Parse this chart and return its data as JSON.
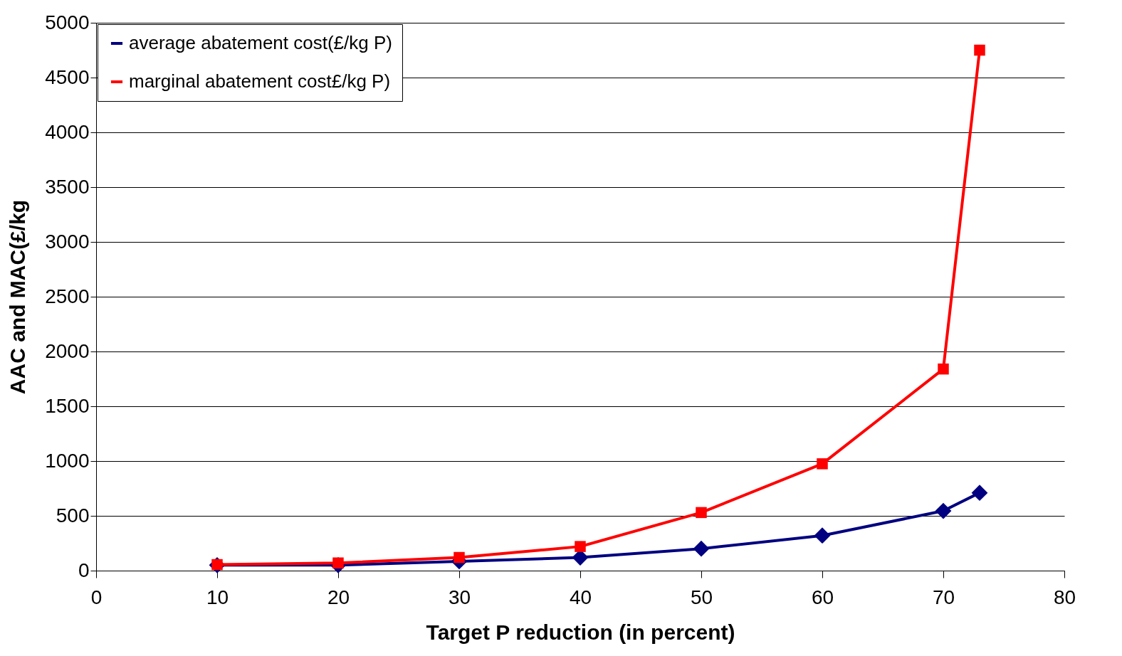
{
  "chart_data": {
    "type": "line",
    "xlabel": "Target P reduction (in percent)",
    "ylabel": "AAC and MAC(£/kg",
    "x": [
      10,
      20,
      30,
      40,
      50,
      60,
      70,
      73
    ],
    "series": [
      {
        "name": "average abatement cost(£/kg P)",
        "color": "#000080",
        "marker": "diamond",
        "values": [
          50,
          50,
          85,
          120,
          200,
          320,
          545,
          710
        ]
      },
      {
        "name": "marginal abatement cost£/kg P)",
        "color": "#ff0000",
        "marker": "square",
        "values": [
          55,
          70,
          120,
          220,
          530,
          975,
          1840,
          4750
        ]
      }
    ],
    "xlim": [
      0,
      80
    ],
    "xticks": [
      0,
      10,
      20,
      30,
      40,
      50,
      60,
      70,
      80
    ],
    "ylim": [
      0,
      5000
    ],
    "yticks": [
      0,
      500,
      1000,
      1500,
      2000,
      2500,
      3000,
      3500,
      4000,
      4500,
      5000
    ],
    "grid": "y",
    "legend": "top left",
    "line_style": "solid"
  }
}
